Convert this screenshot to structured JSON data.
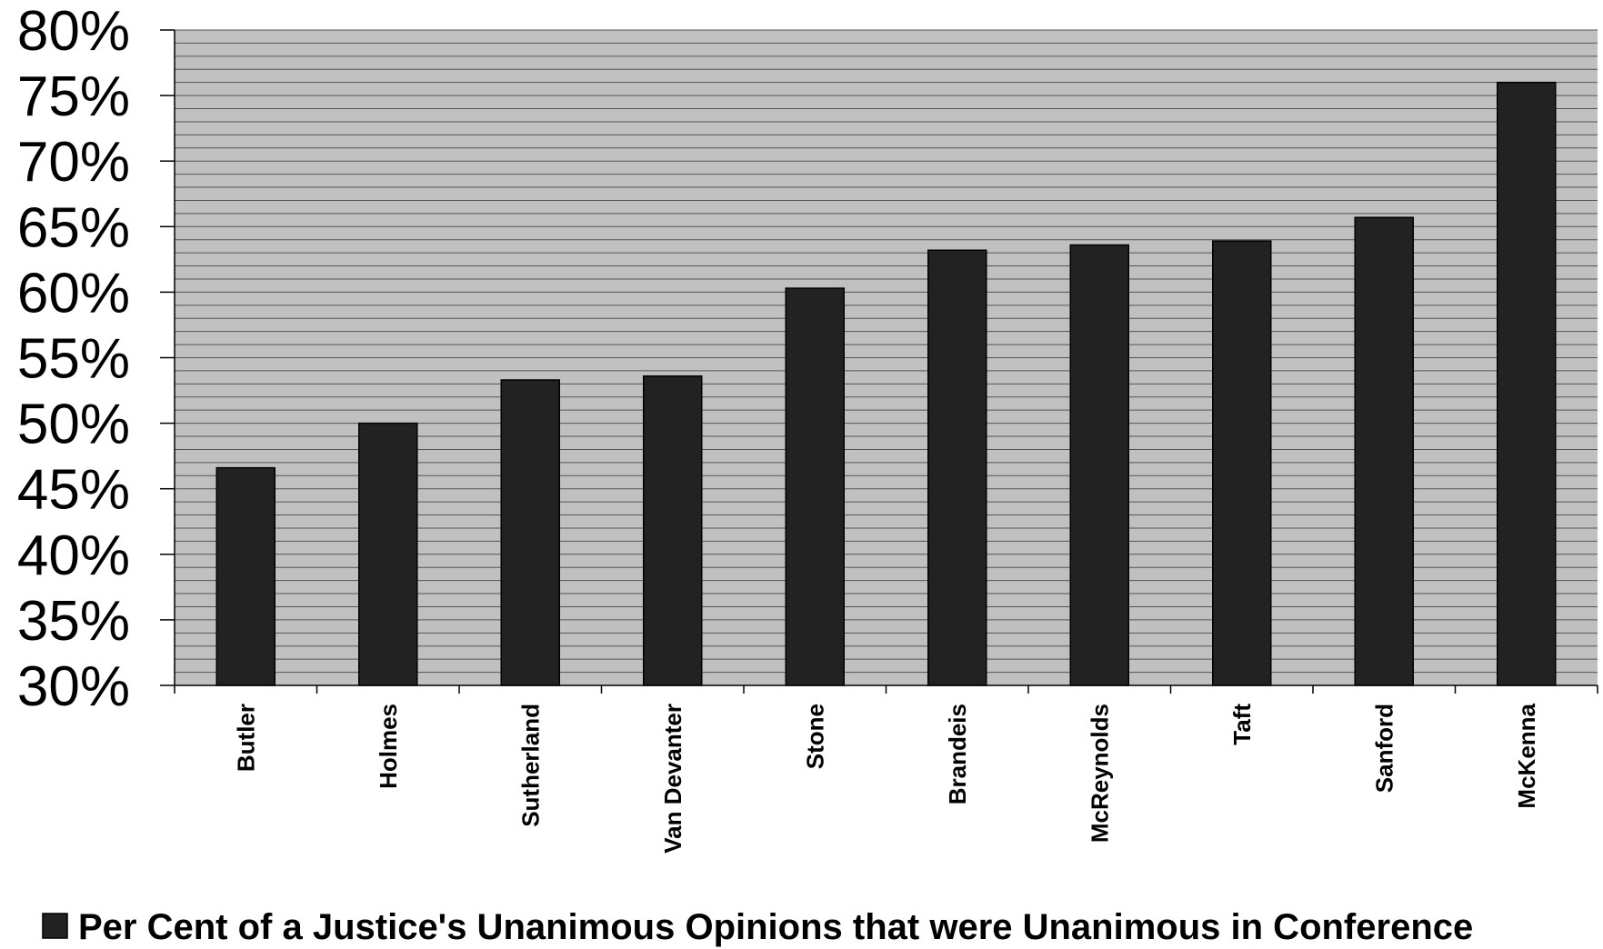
{
  "chart_data": {
    "type": "bar",
    "categories": [
      "Butler",
      "Holmes",
      "Sutherland",
      "Van Devanter",
      "Stone",
      "Brandeis",
      "McReynolds",
      "Taft",
      "Sanford",
      "McKenna"
    ],
    "series": [
      {
        "name": "Per Cent of a Justice's Unanimous Opinions that were Unanimous in Conference",
        "values": [
          46.6,
          50.0,
          53.3,
          53.6,
          60.3,
          63.2,
          63.6,
          63.9,
          65.7,
          76.0
        ],
        "color": "#222222"
      }
    ],
    "yticks": [
      "30%",
      "35%",
      "40%",
      "45%",
      "50%",
      "55%",
      "60%",
      "65%",
      "70%",
      "75%",
      "80%"
    ],
    "ylim": [
      30,
      80
    ],
    "ytick_step": 5,
    "grid": true,
    "plot_background": "#c0c0c0",
    "legend_position": "bottom",
    "title": "",
    "xlabel": "",
    "ylabel": ""
  }
}
